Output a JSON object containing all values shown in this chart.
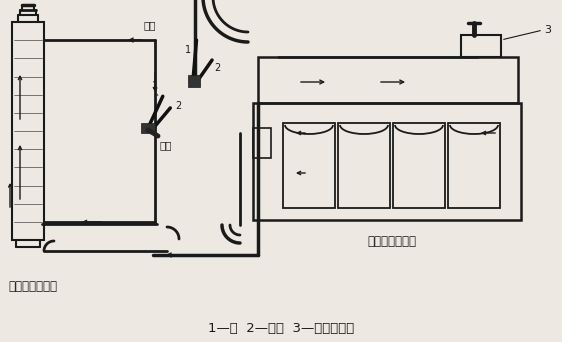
{
  "caption": "1—水  2—空气  3—拆下节温器",
  "left_label": "逆流冲洗散热器",
  "right_label": "逆流冲洗发动机",
  "left_spray_label": "喷枪",
  "right_spray_label": "喷枪",
  "bg_color": "#ede9e2",
  "line_color": "#1a1a1a",
  "fig_width": 5.62,
  "fig_height": 3.42
}
